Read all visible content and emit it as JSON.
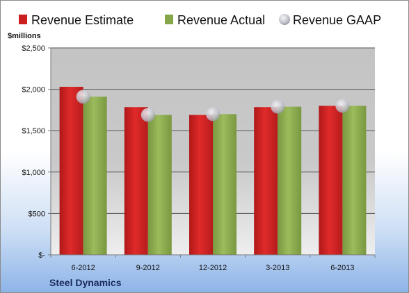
{
  "chart_data": {
    "type": "bar",
    "unit_label": "$millions",
    "company": "Steel Dynamics",
    "categories": [
      "6-2012",
      "9-2012",
      "12-2012",
      "3-2013",
      "6-2013"
    ],
    "series": [
      {
        "name": "Revenue Estimate",
        "kind": "bar",
        "color": "#cc1f1f",
        "values": [
          2030,
          1785,
          1690,
          1785,
          1800
        ]
      },
      {
        "name": "Revenue Actual",
        "kind": "bar",
        "color": "#86a64a",
        "values": [
          1910,
          1690,
          1700,
          1790,
          1800
        ]
      },
      {
        "name": "Revenue GAAP",
        "kind": "marker",
        "color": "#c8c8d0",
        "values": [
          1910,
          1690,
          1700,
          1790,
          1800
        ]
      }
    ],
    "ylim": [
      0,
      2500
    ],
    "yticks": [
      {
        "value": 0,
        "label": "$-"
      },
      {
        "value": 500,
        "label": "$500"
      },
      {
        "value": 1000,
        "label": "$1,000"
      },
      {
        "value": 1500,
        "label": "$1,500"
      },
      {
        "value": 2000,
        "label": "$2,000"
      },
      {
        "value": 2500,
        "label": "$2,500"
      }
    ],
    "grid": true,
    "legend_position": "top"
  }
}
